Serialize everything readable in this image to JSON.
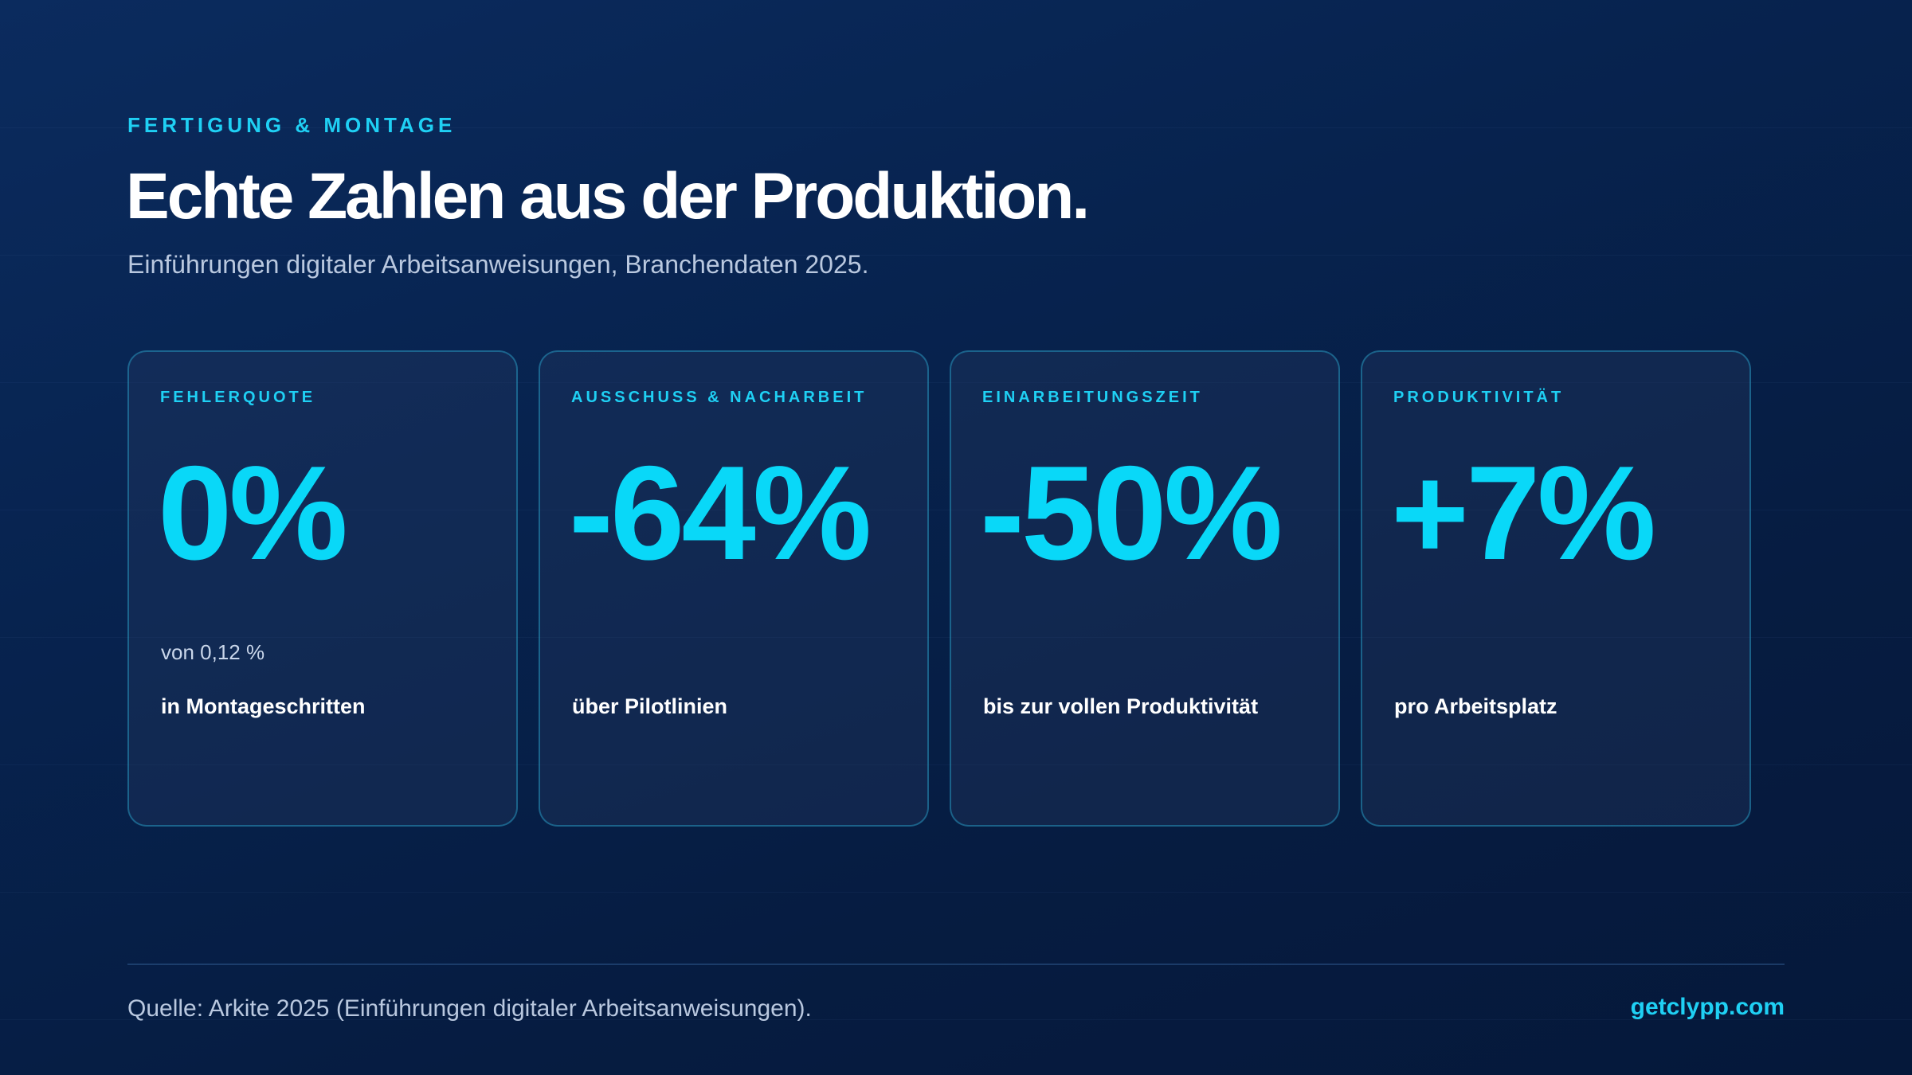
{
  "header": {
    "eyebrow": "FERTIGUNG & MONTAGE",
    "title": "Echte Zahlen aus der Produktion.",
    "subtitle": "Einführungen digitaler Arbeitsanweisungen, Branchendaten 2025."
  },
  "cards": [
    {
      "label": "FEHLERQUOTE",
      "value": "0%",
      "note": "von 0,12 %",
      "description": "in Montageschritten"
    },
    {
      "label": "AUSSCHUSS & NACHARBEIT",
      "value": "-64%",
      "note": "",
      "description": "über Pilotlinien"
    },
    {
      "label": "EINARBEITUNGSZEIT",
      "value": "-50%",
      "note": "",
      "description": "bis zur vollen Produktivität"
    },
    {
      "label": "PRODUKTIVITÄT",
      "value": "+7%",
      "note": "",
      "description": "pro Arbeitsplatz"
    }
  ],
  "footer": {
    "source": "Quelle: Arkite 2025 (Einführungen digitaler Arbeitsanweisungen).",
    "brand": "getclypp.com"
  },
  "colors": {
    "accent": "#09d8f8",
    "background": "#061c41",
    "card_border": "#28aad2"
  }
}
